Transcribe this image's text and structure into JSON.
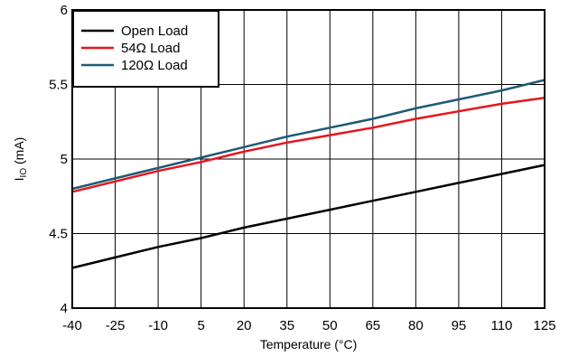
{
  "chart_data": {
    "type": "line",
    "xlabel": "Temperature (°C)",
    "ylabel_main": "I",
    "ylabel_sub": "IO",
    "ylabel_unit": " (mA)",
    "xlim": [
      -40,
      125
    ],
    "ylim": [
      4,
      6
    ],
    "x_ticks": [
      -40,
      -25,
      -10,
      5,
      20,
      35,
      50,
      65,
      80,
      95,
      110,
      125
    ],
    "y_ticks": [
      4,
      4.5,
      5,
      5.5,
      6
    ],
    "y_tick_labels": [
      "4",
      "4.5",
      "5",
      "5.5",
      "6"
    ],
    "grid": true,
    "legend_position": "top-left",
    "series": [
      {
        "name": "Open Load",
        "color": "#000000",
        "x": [
          -40,
          -25,
          -10,
          5,
          20,
          35,
          50,
          65,
          80,
          95,
          110,
          125
        ],
        "y": [
          4.27,
          4.34,
          4.41,
          4.47,
          4.54,
          4.6,
          4.66,
          4.72,
          4.78,
          4.84,
          4.9,
          4.96
        ]
      },
      {
        "name": "54Ω Load",
        "color": "#e8141c",
        "x": [
          -40,
          -25,
          -10,
          5,
          20,
          35,
          50,
          65,
          80,
          95,
          110,
          125
        ],
        "y": [
          4.78,
          4.85,
          4.92,
          4.98,
          5.05,
          5.11,
          5.16,
          5.21,
          5.27,
          5.32,
          5.37,
          5.41
        ]
      },
      {
        "name": "120Ω Load",
        "color": "#1d5a73",
        "x": [
          -40,
          -25,
          -10,
          5,
          20,
          35,
          50,
          65,
          80,
          95,
          110,
          125
        ],
        "y": [
          4.8,
          4.87,
          4.94,
          5.01,
          5.08,
          5.15,
          5.21,
          5.27,
          5.34,
          5.4,
          5.46,
          5.53
        ]
      }
    ]
  }
}
